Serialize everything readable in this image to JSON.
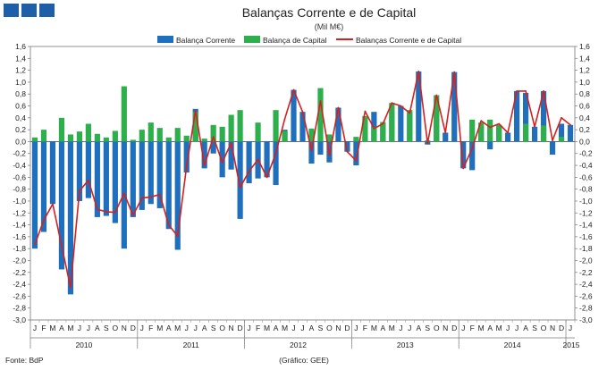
{
  "colors": {
    "corrente": "#1f6fbf",
    "capital": "#2db04b",
    "line": "#d62020"
  },
  "chart_data": {
    "type": "bar",
    "title": "Balanças Corrente e de Capital",
    "subtitle": "(Mil M€)",
    "ylim": [
      -3.0,
      1.6
    ],
    "yticks": [
      "1,6",
      "1,4",
      "1,2",
      "1,0",
      "0,8",
      "0,6",
      "0,4",
      "0,2",
      "0,0",
      "-0,2",
      "-0,4",
      "-0,6",
      "-0,8",
      "-1,0",
      "-1,2",
      "-1,4",
      "-1,6",
      "-1,8",
      "-2,0",
      "-2,2",
      "-2,4",
      "-2,6",
      "-2,8",
      "-3,0"
    ],
    "month_labels": [
      "J",
      "F",
      "M",
      "A",
      "M",
      "J",
      "J",
      "A",
      "S",
      "O",
      "N",
      "D",
      "J",
      "F",
      "M",
      "A",
      "M",
      "J",
      "J",
      "A",
      "S",
      "O",
      "N",
      "D",
      "J",
      "F",
      "M",
      "A",
      "M",
      "J",
      "J",
      "A",
      "S",
      "O",
      "N",
      "D",
      "J",
      "F",
      "M",
      "A",
      "M",
      "J",
      "J",
      "A",
      "S",
      "O",
      "N",
      "D",
      "J",
      "F",
      "M",
      "A",
      "M",
      "J",
      "J",
      "A",
      "S",
      "O",
      "N",
      "D",
      "J"
    ],
    "years": [
      {
        "label": "2010",
        "start": 0
      },
      {
        "label": "2011",
        "start": 12
      },
      {
        "label": "2012",
        "start": 24
      },
      {
        "label": "2013",
        "start": 36
      },
      {
        "label": "2014",
        "start": 48
      },
      {
        "label": "2015",
        "start": 60
      }
    ],
    "series": [
      {
        "name": "Balança Corrente",
        "type": "bar",
        "values": [
          -1.8,
          -1.52,
          -1.05,
          -2.15,
          -2.57,
          -1.0,
          -0.95,
          -1.27,
          -1.25,
          -1.37,
          -1.8,
          -1.27,
          -1.15,
          -1.05,
          -1.12,
          -1.47,
          -1.82,
          -0.52,
          0.55,
          -0.45,
          -0.2,
          -0.6,
          -0.47,
          -1.3,
          -0.7,
          -0.62,
          -0.6,
          -0.73,
          0.2,
          0.87,
          0.5,
          -0.37,
          -0.22,
          -0.35,
          0.57,
          -0.17,
          -0.4,
          0.08,
          0.5,
          0.3,
          0.5,
          0.6,
          0.48,
          1.18,
          -0.05,
          0.58,
          0.15,
          1.17,
          -0.45,
          -0.48,
          0.25,
          -0.13,
          0.28,
          0.15,
          0.85,
          0.82,
          0.25,
          0.85,
          -0.22,
          0.3,
          0.28
        ]
      },
      {
        "name": "Balança de Capital",
        "type": "bar",
        "values": [
          0.07,
          0.2,
          0.0,
          0.4,
          0.12,
          0.17,
          0.3,
          0.13,
          0.07,
          0.18,
          0.93,
          0.03,
          0.2,
          0.32,
          0.23,
          0.07,
          0.23,
          0.1,
          0.5,
          0.05,
          0.28,
          0.25,
          0.45,
          0.53,
          0.0,
          0.32,
          0.0,
          0.53,
          0.18,
          0.0,
          0.0,
          0.22,
          0.9,
          0.12,
          0.0,
          0.0,
          0.08,
          0.43,
          0.25,
          0.33,
          0.65,
          0.0,
          0.53,
          0.0,
          0.02,
          0.78,
          0.0,
          0.0,
          0.0,
          0.37,
          0.32,
          0.37,
          0.28,
          0.0,
          0.0,
          0.3,
          0.0,
          0.27,
          0.0,
          0.08,
          0.0
        ]
      },
      {
        "name": "Balanças Corrente e de Capital",
        "type": "line",
        "values": [
          -1.73,
          -1.32,
          -1.05,
          -1.75,
          -2.45,
          -0.83,
          -0.65,
          -1.14,
          -1.18,
          -1.19,
          -0.87,
          -1.24,
          -0.95,
          -0.93,
          -0.89,
          -1.4,
          -1.59,
          -0.42,
          0.52,
          -0.4,
          0.08,
          -0.35,
          -0.02,
          -0.77,
          -0.5,
          -0.3,
          -0.6,
          -0.2,
          0.38,
          0.87,
          0.5,
          -0.15,
          0.68,
          -0.23,
          0.57,
          -0.17,
          -0.32,
          0.51,
          0.22,
          0.3,
          0.65,
          0.6,
          0.48,
          1.18,
          -0.03,
          0.78,
          0.15,
          1.17,
          -0.45,
          -0.11,
          0.35,
          0.24,
          0.3,
          0.15,
          0.85,
          0.85,
          0.25,
          0.85,
          0.02,
          0.4,
          0.28
        ]
      }
    ]
  },
  "footer": {
    "source": "Fonte: BdP",
    "credit": "(Gráfico: GEE)"
  }
}
